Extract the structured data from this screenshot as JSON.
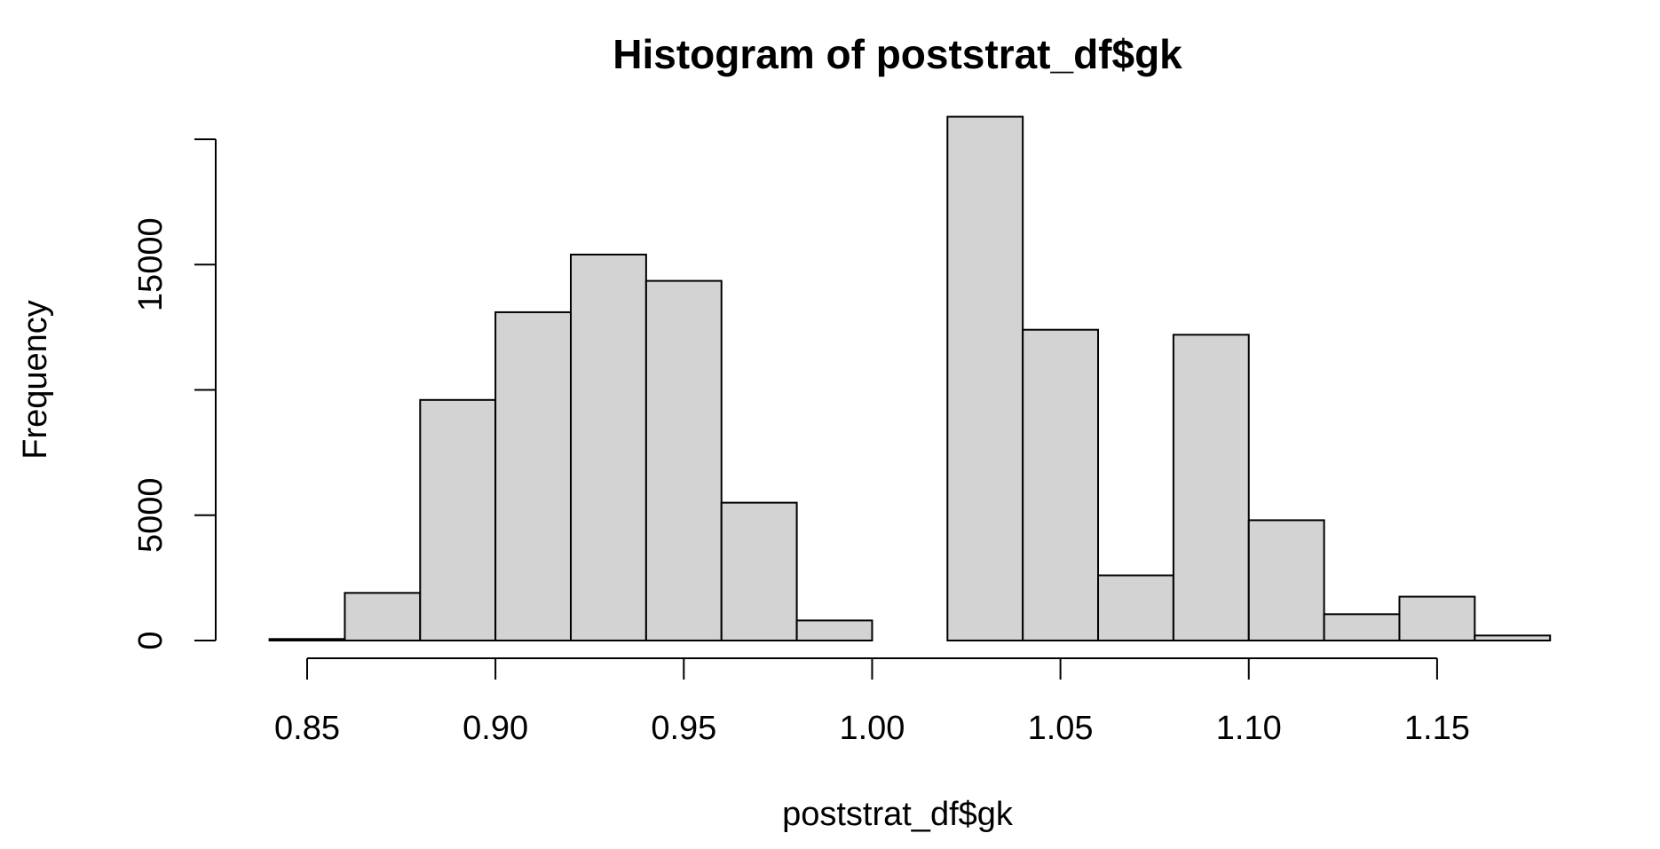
{
  "chart_data": {
    "type": "bar",
    "title": "Histogram of poststrat_df$gk",
    "xlabel": "poststrat_df$gk",
    "ylabel": "Frequency",
    "xlim": [
      0.84,
      1.18
    ],
    "ylim": [
      0,
      20000
    ],
    "bin_width": 0.02,
    "bins": [
      {
        "start": 0.84,
        "end": 0.86,
        "count": 60
      },
      {
        "start": 0.86,
        "end": 0.88,
        "count": 1900
      },
      {
        "start": 0.88,
        "end": 0.9,
        "count": 9600
      },
      {
        "start": 0.9,
        "end": 0.92,
        "count": 13100
      },
      {
        "start": 0.92,
        "end": 0.94,
        "count": 15400
      },
      {
        "start": 0.94,
        "end": 0.96,
        "count": 14350
      },
      {
        "start": 0.96,
        "end": 0.98,
        "count": 5500
      },
      {
        "start": 0.98,
        "end": 1.0,
        "count": 800
      },
      {
        "start": 1.0,
        "end": 1.02,
        "count": 0
      },
      {
        "start": 1.02,
        "end": 1.04,
        "count": 20900
      },
      {
        "start": 1.04,
        "end": 1.06,
        "count": 12400
      },
      {
        "start": 1.06,
        "end": 1.08,
        "count": 2600
      },
      {
        "start": 1.08,
        "end": 1.1,
        "count": 12200
      },
      {
        "start": 1.1,
        "end": 1.12,
        "count": 4800
      },
      {
        "start": 1.12,
        "end": 1.14,
        "count": 1050
      },
      {
        "start": 1.14,
        "end": 1.16,
        "count": 1750
      },
      {
        "start": 1.16,
        "end": 1.18,
        "count": 200
      }
    ],
    "x_ticks": [
      {
        "value": 0.85,
        "label": "0.85"
      },
      {
        "value": 0.9,
        "label": "0.90"
      },
      {
        "value": 0.95,
        "label": "0.95"
      },
      {
        "value": 1.0,
        "label": "1.00"
      },
      {
        "value": 1.05,
        "label": "1.05"
      },
      {
        "value": 1.1,
        "label": "1.10"
      },
      {
        "value": 1.15,
        "label": "1.15"
      }
    ],
    "y_ticks": [
      {
        "value": 0,
        "label": "0"
      },
      {
        "value": 5000,
        "label": "5000"
      },
      {
        "value": 10000,
        "label": ""
      },
      {
        "value": 15000,
        "label": "15000"
      },
      {
        "value": 20000,
        "label": ""
      }
    ],
    "bar_fill": "#d3d3d3",
    "bar_stroke": "#000000",
    "grid": false,
    "legend": "none"
  }
}
